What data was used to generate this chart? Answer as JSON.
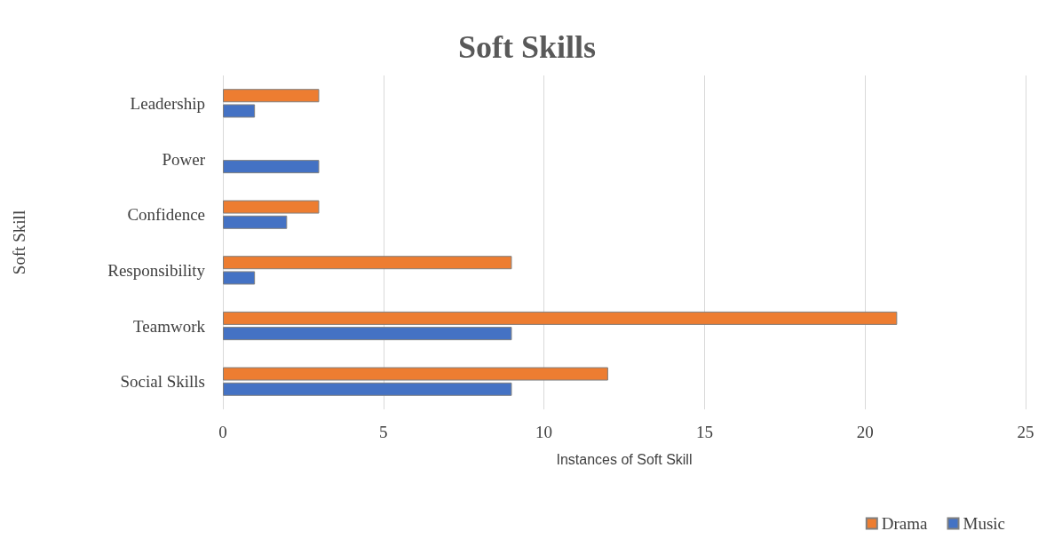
{
  "chart_data": {
    "type": "bar",
    "title": "Soft Skills",
    "xlabel": "Instances of Soft Skill",
    "ylabel": "Soft Skill",
    "orientation": "horizontal",
    "categories": [
      "Leadership",
      "Power",
      "Confidence",
      "Responsibility",
      "Teamwork",
      "Social Skills"
    ],
    "series": [
      {
        "name": "Drama",
        "color": "#ed7d31",
        "values": [
          3,
          null,
          3,
          9,
          21,
          12
        ]
      },
      {
        "name": "Music",
        "color": "#4472c4",
        "values": [
          1,
          3,
          2,
          1,
          9,
          9
        ]
      }
    ],
    "xlim": [
      0,
      25
    ],
    "xticks": [
      0,
      5,
      10,
      15,
      20,
      25
    ],
    "grid": "x",
    "legend": "bottom right"
  }
}
